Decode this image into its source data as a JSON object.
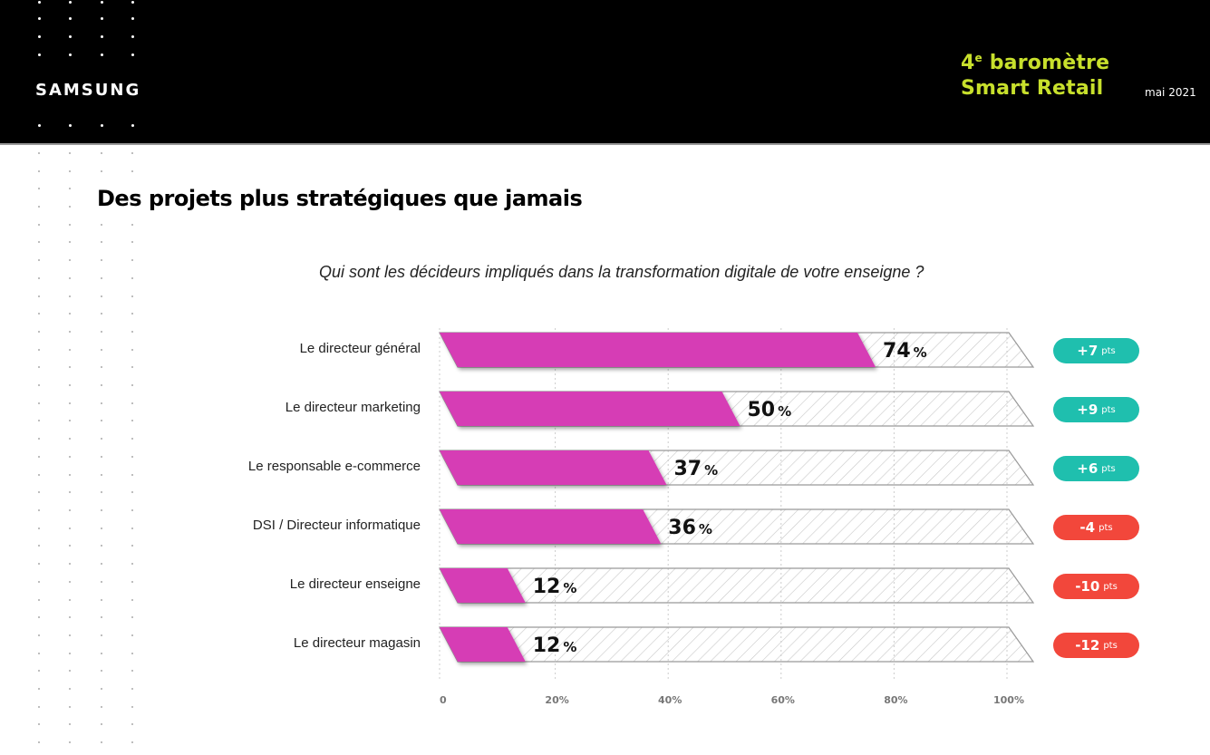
{
  "header": {
    "logo": "SAMSUNG",
    "brand_line1_num": "4",
    "brand_line1_sup": "e",
    "brand_line1_rest": " baromètre",
    "brand_line2": "Smart Retail",
    "date": "mai 2021",
    "brand_color": "#c8e02c"
  },
  "page": {
    "title": "Des projets plus stratégiques que jamais"
  },
  "chart_data": {
    "type": "bar",
    "orientation": "horizontal",
    "title": "Qui sont les décideurs impliqués dans la transformation digitale de votre enseigne ?",
    "categories": [
      "Le directeur général",
      "Le directeur marketing",
      "Le responsable e-commerce",
      "DSI / Directeur informatique",
      "Le directeur enseigne",
      "Le directeur magasin"
    ],
    "values": [
      74,
      50,
      37,
      36,
      12,
      12
    ],
    "value_labels": [
      "74",
      "50",
      "37",
      "36",
      "12",
      "12"
    ],
    "value_unit": "%",
    "changes": [
      {
        "value": "+7",
        "unit": "pts",
        "direction": "up"
      },
      {
        "value": "+9",
        "unit": "pts",
        "direction": "up"
      },
      {
        "value": "+6",
        "unit": "pts",
        "direction": "up"
      },
      {
        "value": "-4",
        "unit": "pts",
        "direction": "down"
      },
      {
        "value": "-10",
        "unit": "pts",
        "direction": "down"
      },
      {
        "value": "-12",
        "unit": "pts",
        "direction": "down"
      }
    ],
    "xlim": [
      0,
      100
    ],
    "xticks": [
      0,
      20,
      40,
      60,
      80,
      100
    ],
    "xtick_labels": [
      "0",
      "20%",
      "40%",
      "60%",
      "80%",
      "100%"
    ],
    "grid": true,
    "colors": {
      "bar": "#d63db5",
      "up": "#1fbfae",
      "down": "#f2473b"
    }
  }
}
